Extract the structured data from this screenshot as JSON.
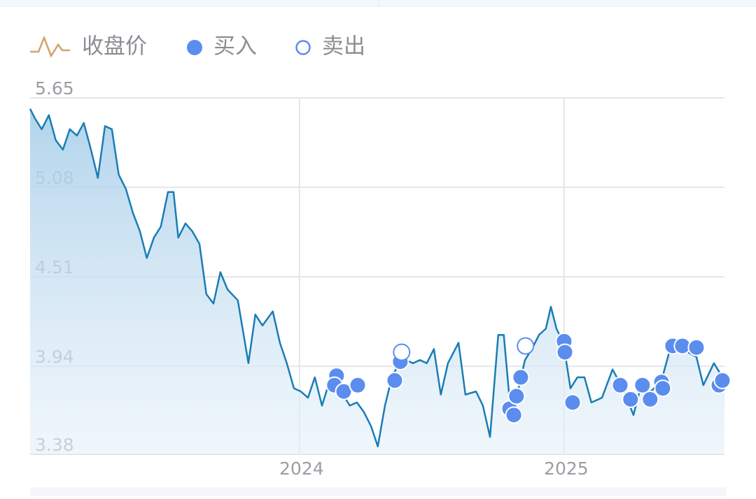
{
  "chart_data": {
    "type": "line",
    "xlim": [
      2022.982,
      2025.606
    ],
    "xticks": [
      2024,
      2025
    ],
    "ylim": [
      3.38,
      5.65
    ],
    "yticks": [
      3.38,
      3.94,
      4.51,
      5.08,
      5.65
    ],
    "grid": true,
    "series": [
      {
        "name": "收盘价",
        "style": "line",
        "color": "#1a7db5",
        "x": [
          2022.982,
          2023.0,
          2023.026,
          2023.053,
          2023.079,
          2023.106,
          2023.132,
          2023.159,
          2023.185,
          2023.212,
          2023.238,
          2023.265,
          2023.291,
          2023.317,
          2023.344,
          2023.37,
          2023.397,
          2023.423,
          2023.45,
          2023.476,
          2023.503,
          2023.524,
          2023.542,
          2023.569,
          2023.595,
          2023.622,
          2023.648,
          2023.675,
          2023.701,
          2023.728,
          2023.767,
          2023.807,
          2023.833,
          2023.86,
          2023.899,
          2023.926,
          2023.952,
          2023.979,
          2024.005,
          2024.032,
          2024.058,
          2024.085,
          2024.111,
          2024.138,
          2024.164,
          2024.19,
          2024.217,
          2024.243,
          2024.27,
          2024.296,
          2024.323,
          2024.349,
          2024.376,
          2024.402,
          2024.429,
          2024.455,
          2024.481,
          2024.508,
          2024.534,
          2024.561,
          2024.601,
          2024.627,
          2024.667,
          2024.693,
          2024.72,
          2024.751,
          2024.772,
          2024.799,
          2024.825,
          2024.852,
          2024.878,
          2024.905,
          2024.931,
          2024.95,
          2024.971,
          2024.997,
          2025.024,
          2025.05,
          2025.077,
          2025.103,
          2025.143,
          2025.183,
          2025.222,
          2025.262,
          2025.288,
          2025.328,
          2025.368,
          2025.407,
          2025.447,
          2025.5,
          2025.526,
          2025.566,
          2025.606
        ],
        "values": [
          5.58,
          5.52,
          5.45,
          5.54,
          5.38,
          5.32,
          5.45,
          5.41,
          5.49,
          5.32,
          5.14,
          5.47,
          5.45,
          5.16,
          5.07,
          4.92,
          4.8,
          4.63,
          4.76,
          4.83,
          5.05,
          5.05,
          4.76,
          4.85,
          4.8,
          4.72,
          4.4,
          4.34,
          4.54,
          4.43,
          4.36,
          3.96,
          4.27,
          4.2,
          4.29,
          4.09,
          3.96,
          3.8,
          3.78,
          3.74,
          3.87,
          3.69,
          3.83,
          3.8,
          3.76,
          3.69,
          3.71,
          3.65,
          3.56,
          3.43,
          3.69,
          3.87,
          3.96,
          3.98,
          3.96,
          3.98,
          3.96,
          4.05,
          3.76,
          3.96,
          4.09,
          3.76,
          3.78,
          3.69,
          3.49,
          4.14,
          4.14,
          3.63,
          3.78,
          3.98,
          4.05,
          4.14,
          4.18,
          4.32,
          4.18,
          4.09,
          3.8,
          3.87,
          3.87,
          3.71,
          3.74,
          3.92,
          3.8,
          3.63,
          3.8,
          3.78,
          3.85,
          4.09,
          4.05,
          4.0,
          3.82,
          3.96,
          3.85
        ]
      },
      {
        "name": "买入",
        "style": "filled",
        "color": "#5b8def",
        "x": [
          2024.14,
          2024.132,
          2024.167,
          2024.22,
          2024.36,
          2024.381,
          2024.794,
          2024.81,
          2024.82,
          2024.836,
          2025.0,
          2025.003,
          2025.032,
          2025.212,
          2025.251,
          2025.296,
          2025.325,
          2025.368,
          2025.373,
          2025.41,
          2025.447,
          2025.5,
          2025.585,
          2025.598
        ],
        "values": [
          3.88,
          3.82,
          3.78,
          3.82,
          3.85,
          3.97,
          3.67,
          3.63,
          3.75,
          3.87,
          4.1,
          4.03,
          3.71,
          3.82,
          3.73,
          3.82,
          3.73,
          3.84,
          3.8,
          4.07,
          4.07,
          4.06,
          3.82,
          3.85
        ]
      },
      {
        "name": "卖出",
        "style": "hollow",
        "color": "#5b8def",
        "x": [
          2024.386,
          2024.854
        ],
        "values": [
          4.03,
          4.07
        ]
      }
    ]
  }
}
